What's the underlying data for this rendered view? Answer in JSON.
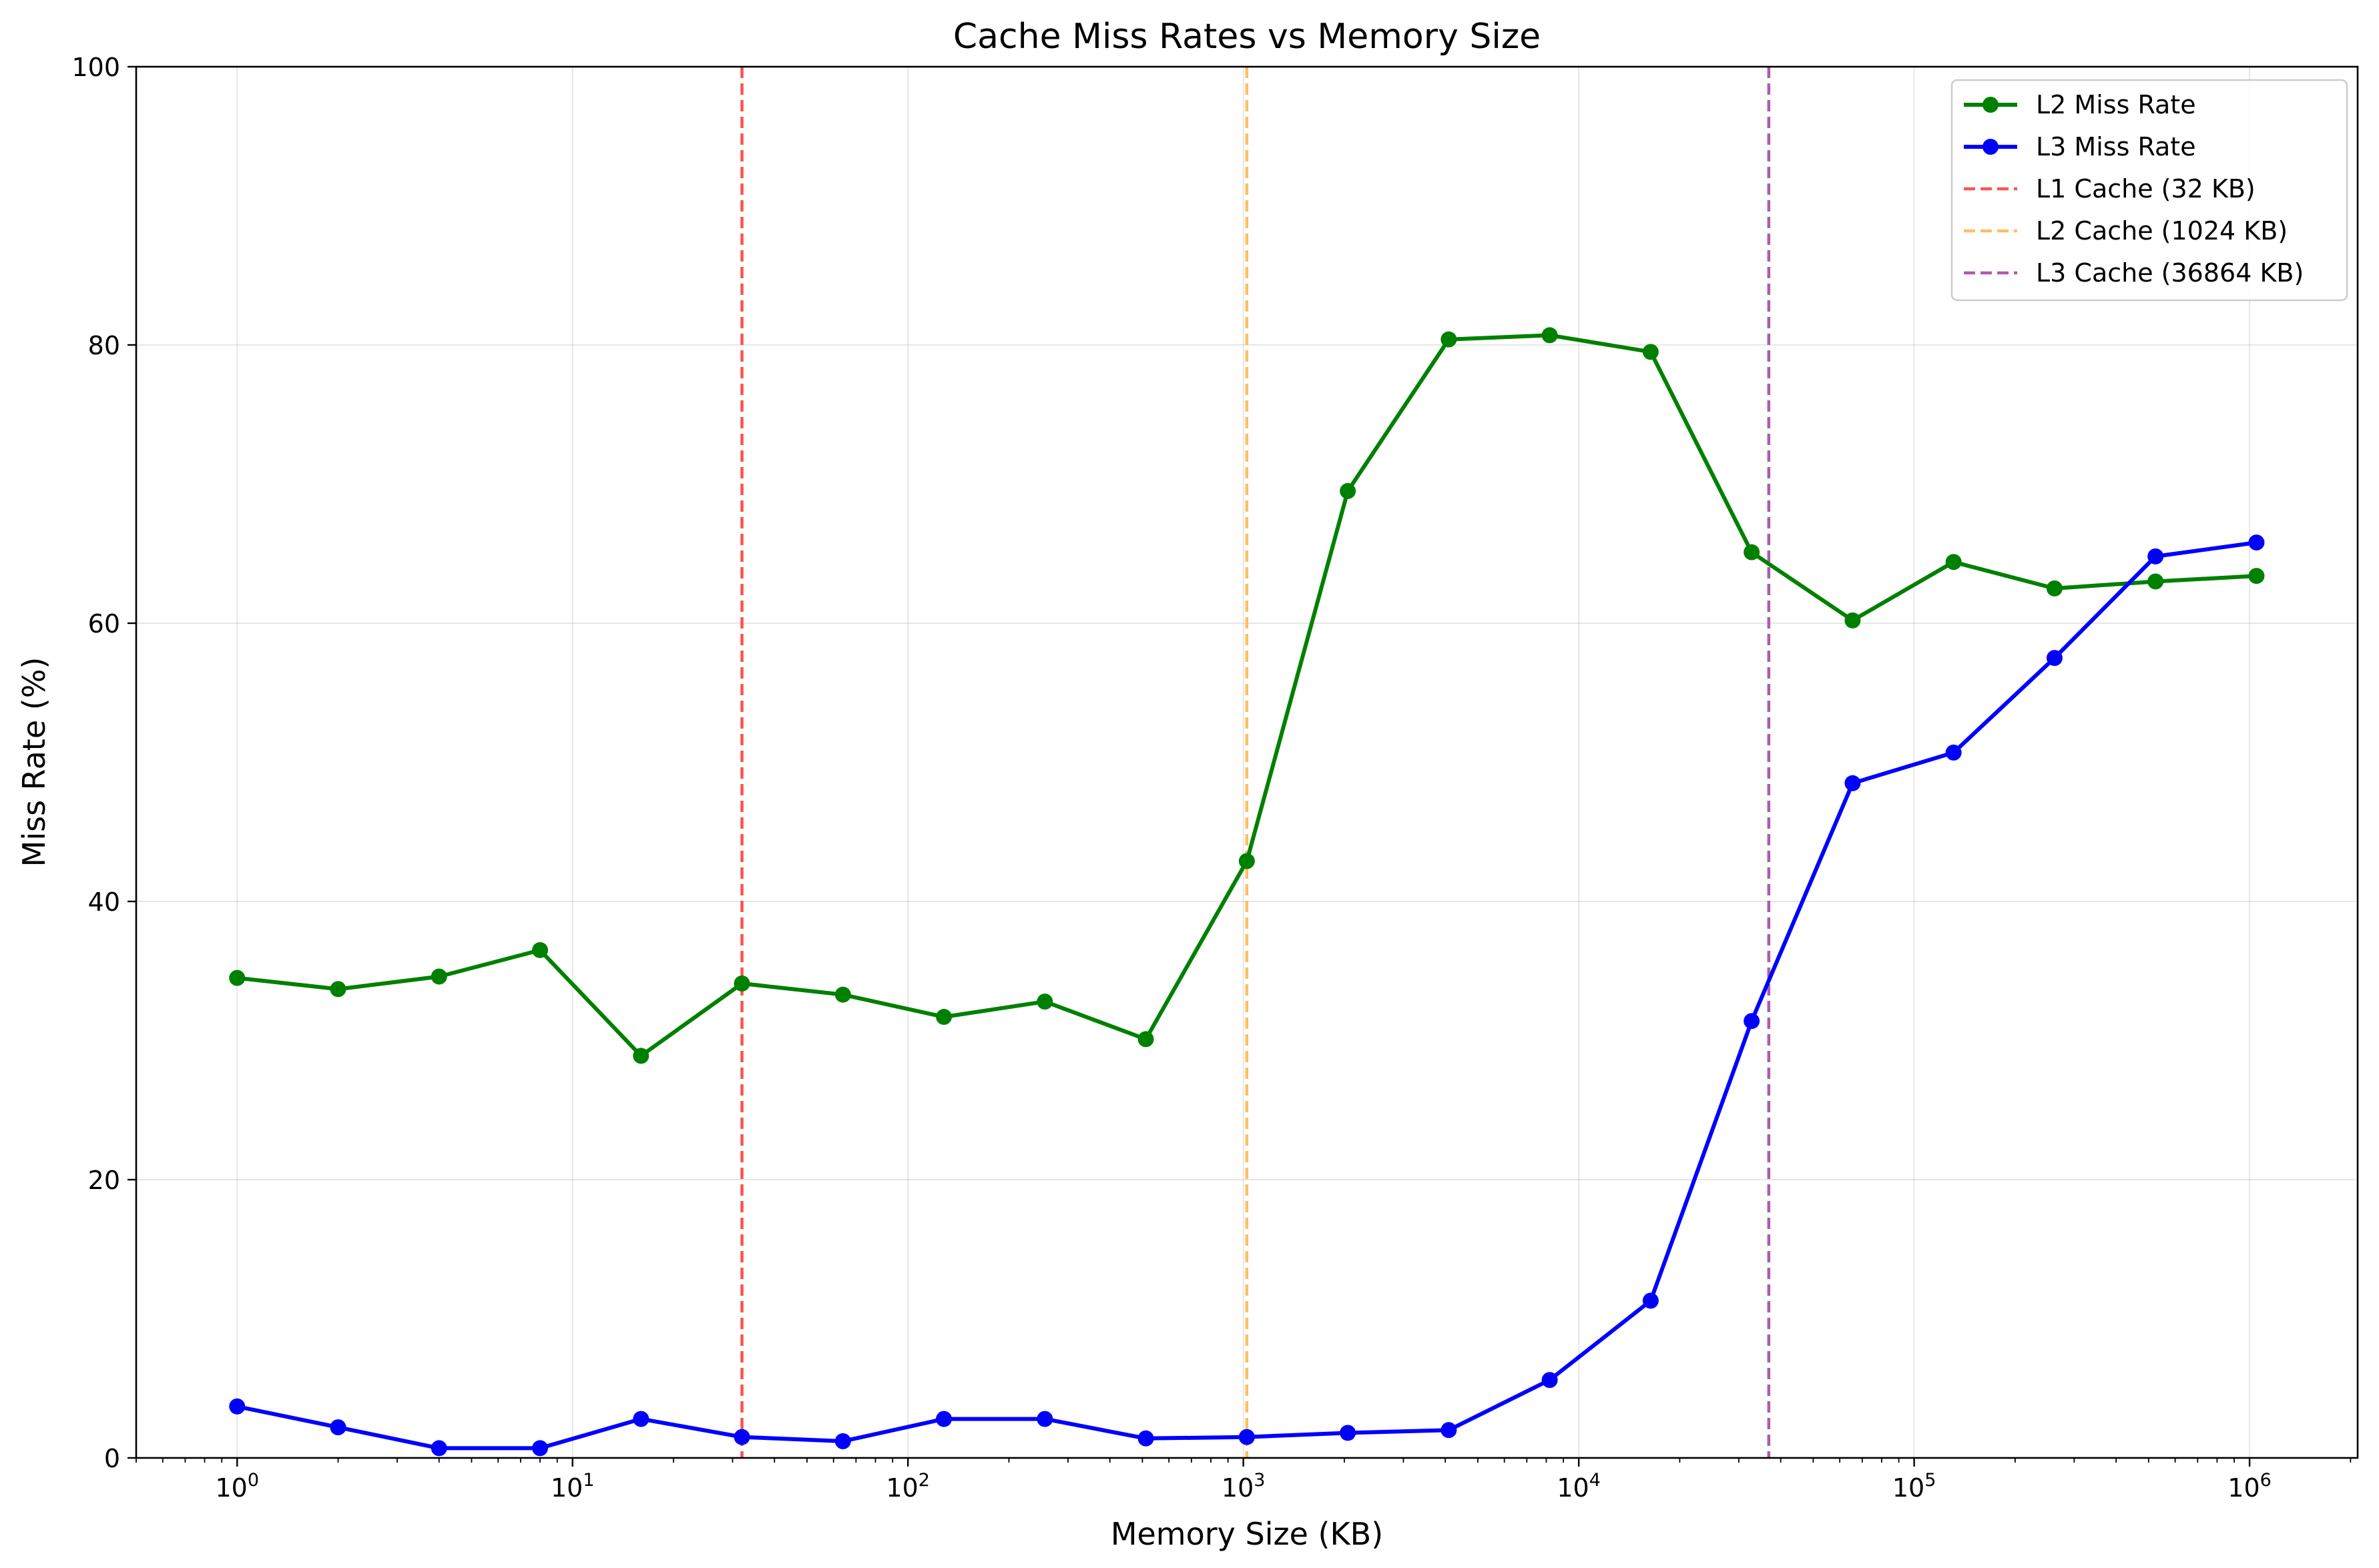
{
  "chart_data": {
    "type": "line",
    "title": "Cache Miss Rates vs Memory Size",
    "xlabel": "Memory Size (KB)",
    "ylabel": "Miss Rate (%)",
    "x_scale": "log",
    "xlim": [
      0.5,
      2100000
    ],
    "ylim": [
      0,
      100
    ],
    "grid": true,
    "legend_position": "top-right",
    "x_ticks": [
      {
        "value": 1,
        "base": "10",
        "exp": "0"
      },
      {
        "value": 10,
        "base": "10",
        "exp": "1"
      },
      {
        "value": 100,
        "base": "10",
        "exp": "2"
      },
      {
        "value": 1000,
        "base": "10",
        "exp": "3"
      },
      {
        "value": 10000,
        "base": "10",
        "exp": "4"
      },
      {
        "value": 100000,
        "base": "10",
        "exp": "5"
      },
      {
        "value": 1000000,
        "base": "10",
        "exp": "6"
      }
    ],
    "y_ticks": [
      0,
      20,
      40,
      60,
      80,
      100
    ],
    "x": [
      1,
      2,
      4,
      8,
      16,
      32,
      64,
      128,
      256,
      512,
      1024,
      2048,
      4096,
      8192,
      16384,
      32768,
      65536,
      131072,
      262144,
      524288,
      1048576
    ],
    "series": [
      {
        "name": "L2 Miss Rate",
        "color": "#008000",
        "marker": "circle",
        "values": [
          34.5,
          33.7,
          34.6,
          36.5,
          28.9,
          34.1,
          33.3,
          31.7,
          32.8,
          30.1,
          42.9,
          69.5,
          80.4,
          80.7,
          79.5,
          65.1,
          60.2,
          64.4,
          62.5,
          63.0,
          63.4
        ]
      },
      {
        "name": "L3 Miss Rate",
        "color": "#0000ff",
        "marker": "circle",
        "values": [
          3.7,
          2.2,
          0.7,
          0.7,
          2.8,
          1.5,
          1.2,
          2.8,
          2.8,
          1.4,
          1.5,
          1.8,
          2.0,
          5.6,
          11.3,
          31.4,
          48.5,
          50.7,
          57.5,
          64.8,
          65.8
        ]
      }
    ],
    "vlines": [
      {
        "name": "L1 Cache (32 KB)",
        "x": 32,
        "color": "#ff3333",
        "style": "dashed"
      },
      {
        "name": "L2 Cache (1024 KB)",
        "x": 1024,
        "color": "#ffb347",
        "style": "dashed"
      },
      {
        "name": "L3 Cache (36864 KB)",
        "x": 36864,
        "color": "#a040a0",
        "style": "dashed"
      }
    ]
  }
}
